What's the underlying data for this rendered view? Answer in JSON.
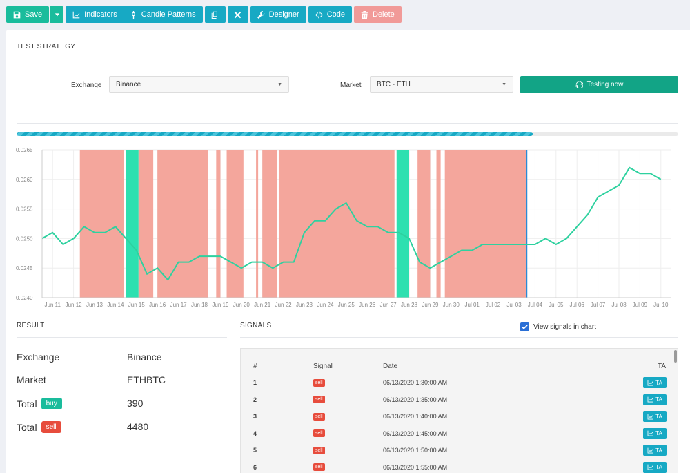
{
  "toolbar": {
    "save": "Save",
    "indicators": "Indicators",
    "candle_patterns": "Candle Patterns",
    "designer": "Designer",
    "code": "Code",
    "delete": "Delete"
  },
  "header": {
    "title": "TEST STRATEGY"
  },
  "form": {
    "exchange_label": "Exchange",
    "exchange_value": "Binance",
    "market_label": "Market",
    "market_value": "BTC - ETH",
    "testing_button": "Testing now"
  },
  "progress": {
    "value": 0.78
  },
  "chart_data": {
    "type": "line",
    "x_labels": [
      "Jun 11",
      "Jun 12",
      "Jun 13",
      "Jun 14",
      "Jun 15",
      "Jun 16",
      "Jun 17",
      "Jun 18",
      "Jun 19",
      "Jun 20",
      "Jun 21",
      "Jun 22",
      "Jun 23",
      "Jun 24",
      "Jun 25",
      "Jun 26",
      "Jun 27",
      "Jun 28",
      "Jun 29",
      "Jun 30",
      "Jul 01",
      "Jul 02",
      "Jul 03",
      "Jul 04",
      "Jul 05",
      "Jul 06",
      "Jul 07",
      "Jul 08",
      "Jul 09",
      "Jul 10"
    ],
    "y_ticks": [
      "0.0240",
      "0.0245",
      "0.0250",
      "0.0255",
      "0.0260",
      "0.0265"
    ],
    "ylim": [
      0.024,
      0.0265
    ],
    "xlim": [
      0,
      30
    ],
    "series": [
      {
        "color": "#2ed19f",
        "x": [
          0,
          0.5,
          1,
          1.5,
          2,
          2.5,
          3,
          3.5,
          4,
          4.5,
          5,
          5.5,
          6,
          6.5,
          7,
          7.5,
          8,
          8.5,
          9,
          9.5,
          10,
          10.5,
          11,
          11.5,
          12,
          12.5,
          13,
          13.5,
          14,
          14.5,
          15,
          15.5,
          16,
          16.5,
          17,
          17.5,
          18,
          18.5,
          19,
          19.5,
          20,
          20.5,
          21,
          21.5,
          22,
          22.5,
          23,
          23.5,
          24,
          24.5,
          25,
          25.5,
          26,
          26.5,
          27,
          27.5,
          28,
          28.5,
          29,
          29.5
        ],
        "values": [
          0.025,
          0.0251,
          0.0249,
          0.025,
          0.0252,
          0.0251,
          0.0251,
          0.0252,
          0.025,
          0.0248,
          0.0244,
          0.0245,
          0.0243,
          0.0246,
          0.0246,
          0.0247,
          0.0247,
          0.0247,
          0.0246,
          0.0245,
          0.0246,
          0.0246,
          0.0245,
          0.0246,
          0.0246,
          0.0251,
          0.0253,
          0.0253,
          0.0255,
          0.0256,
          0.0253,
          0.0252,
          0.0252,
          0.0251,
          0.0251,
          0.025,
          0.0246,
          0.0245,
          0.0246,
          0.0247,
          0.0248,
          0.0248,
          0.0249,
          0.0249,
          0.0249,
          0.0249,
          0.0249,
          0.0249,
          0.025,
          0.0249,
          0.025,
          0.0252,
          0.0254,
          0.0257,
          0.0258,
          0.0259,
          0.0262,
          0.0261,
          0.0261,
          0.026
        ]
      }
    ],
    "signal_zones": [
      {
        "from": 1.8,
        "to": 3.9,
        "type": "sell"
      },
      {
        "from": 4.0,
        "to": 4.6,
        "type": "buy"
      },
      {
        "from": 4.6,
        "to": 5.3,
        "type": "sell"
      },
      {
        "from": 5.5,
        "to": 7.9,
        "type": "sell"
      },
      {
        "from": 8.3,
        "to": 8.5,
        "type": "sell"
      },
      {
        "from": 8.8,
        "to": 9.6,
        "type": "sell"
      },
      {
        "from": 10.2,
        "to": 10.3,
        "type": "sell"
      },
      {
        "from": 10.5,
        "to": 11.2,
        "type": "sell"
      },
      {
        "from": 11.3,
        "to": 16.8,
        "type": "sell"
      },
      {
        "from": 16.9,
        "to": 17.5,
        "type": "buy"
      },
      {
        "from": 17.9,
        "to": 18.5,
        "type": "sell"
      },
      {
        "from": 18.8,
        "to": 19.0,
        "type": "sell"
      },
      {
        "from": 19.2,
        "to": 23.1,
        "type": "sell"
      }
    ],
    "current_marker": 23.1
  },
  "result": {
    "title": "RESULT",
    "exchange_label": "Exchange",
    "exchange_value": "Binance",
    "market_label": "Market",
    "market_value": "ETHBTC",
    "total_label": "Total",
    "buy_badge": "buy",
    "buy_total": "390",
    "sell_badge": "sell",
    "sell_total": "4480"
  },
  "signals": {
    "title": "SIGNALS",
    "view_in_chart_label": "View signals in chart",
    "view_in_chart_checked": true,
    "columns": [
      "#",
      "Signal",
      "Date",
      "TA"
    ],
    "ta_label": "TA",
    "rows": [
      {
        "num": "1",
        "signal": "sell",
        "date": "06/13/2020 1:30:00 AM"
      },
      {
        "num": "2",
        "signal": "sell",
        "date": "06/13/2020 1:35:00 AM"
      },
      {
        "num": "3",
        "signal": "sell",
        "date": "06/13/2020 1:40:00 AM"
      },
      {
        "num": "4",
        "signal": "sell",
        "date": "06/13/2020 1:45:00 AM"
      },
      {
        "num": "5",
        "signal": "sell",
        "date": "06/13/2020 1:50:00 AM"
      },
      {
        "num": "6",
        "signal": "sell",
        "date": "06/13/2020 1:55:00 AM"
      }
    ]
  },
  "colors": {
    "green": "#1abc9c",
    "teal": "#17a9c4",
    "red_light": "#f19a98",
    "sell_zone": "#f4a69c",
    "buy_zone": "#2ee0b0",
    "sell_tag": "#e74c3c"
  }
}
